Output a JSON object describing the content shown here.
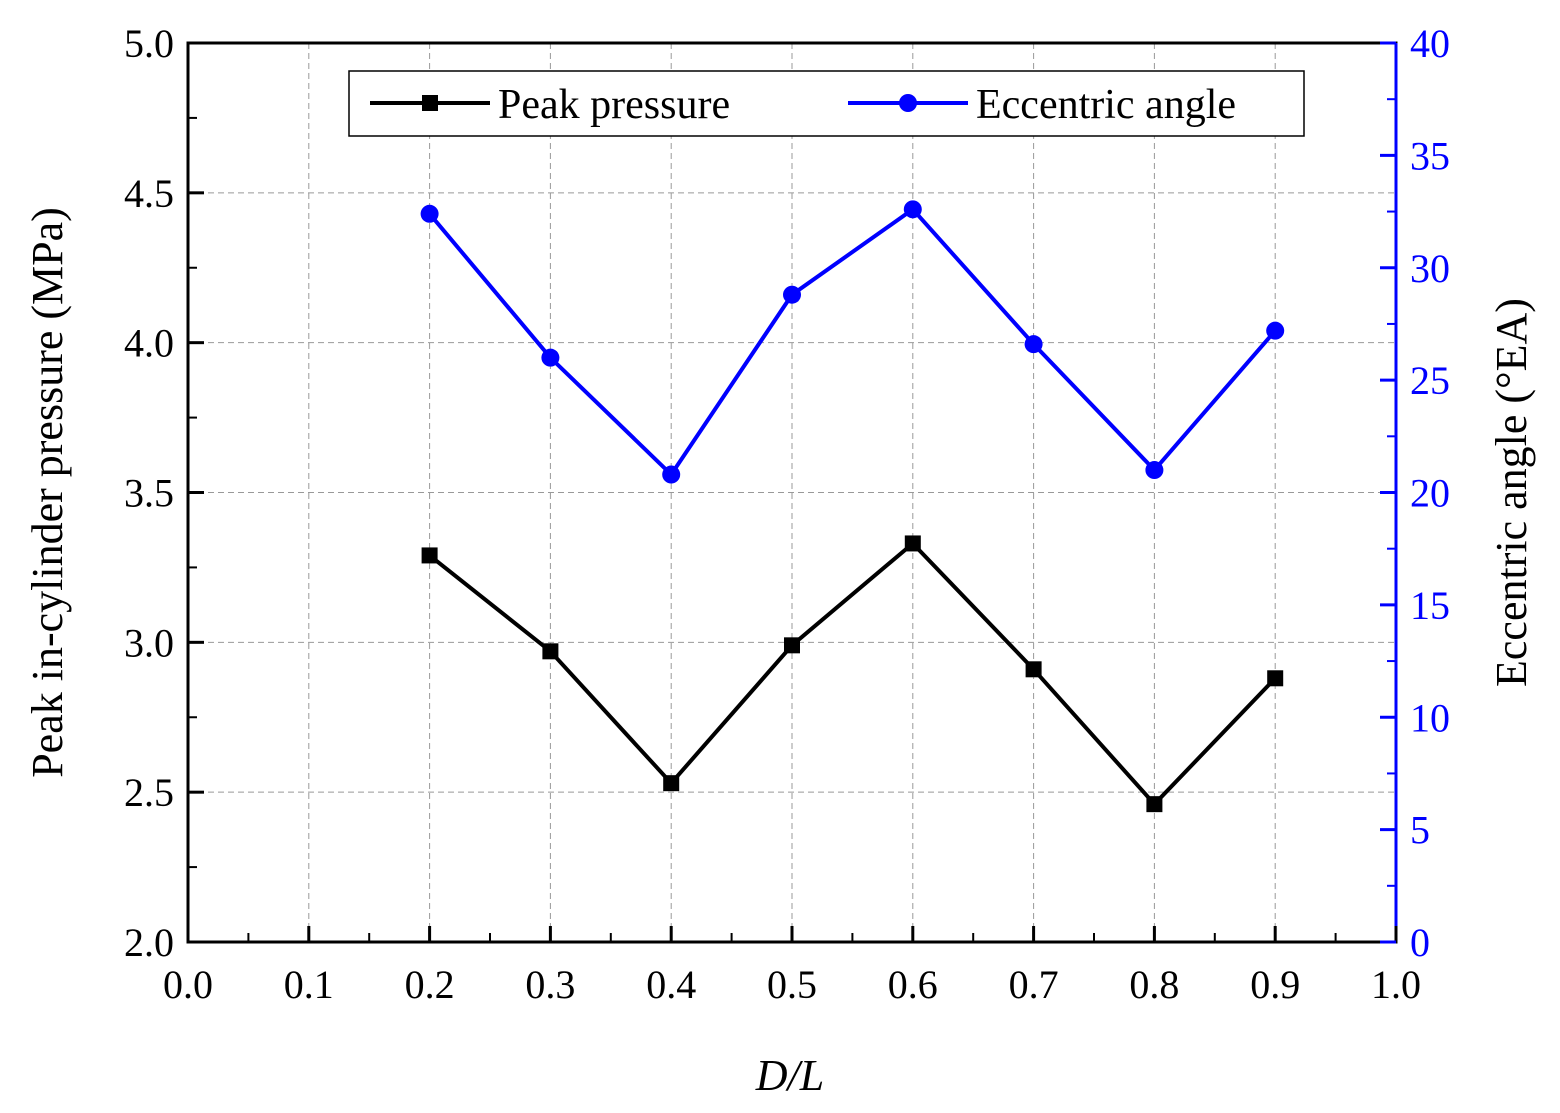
{
  "chart_data": {
    "type": "line",
    "title": "",
    "x": [
      0.2,
      0.3,
      0.4,
      0.5,
      0.6,
      0.7,
      0.8,
      0.9
    ],
    "xlabel": "D/L",
    "xlim": [
      0.0,
      1.0
    ],
    "xticks": [
      "0.0",
      "0.1",
      "0.2",
      "0.3",
      "0.4",
      "0.5",
      "0.6",
      "0.7",
      "0.8",
      "0.9",
      "1.0"
    ],
    "ylabel_left": "Peak in-cylinder pressure (MPa)",
    "ylim_left": [
      2.0,
      5.0
    ],
    "yticks_left": [
      "2.0",
      "2.5",
      "3.0",
      "3.5",
      "4.0",
      "4.5",
      "5.0"
    ],
    "ylabel_right": "Eccentric angle (°EA)",
    "ylim_right": [
      0,
      40
    ],
    "yticks_right": [
      "0",
      "5",
      "10",
      "15",
      "20",
      "25",
      "30",
      "35",
      "40"
    ],
    "grid": true,
    "legend_position": "top",
    "series": [
      {
        "name": "Peak pressure",
        "axis": "left",
        "marker": "square",
        "color": "#000000",
        "values": [
          3.29,
          2.97,
          2.53,
          2.99,
          3.33,
          2.91,
          2.46,
          2.88
        ]
      },
      {
        "name": "Eccentric angle",
        "axis": "right",
        "marker": "circle",
        "color": "#0000ff",
        "values": [
          32.4,
          26.0,
          20.8,
          28.8,
          32.6,
          26.6,
          21.0,
          27.2
        ]
      }
    ]
  }
}
